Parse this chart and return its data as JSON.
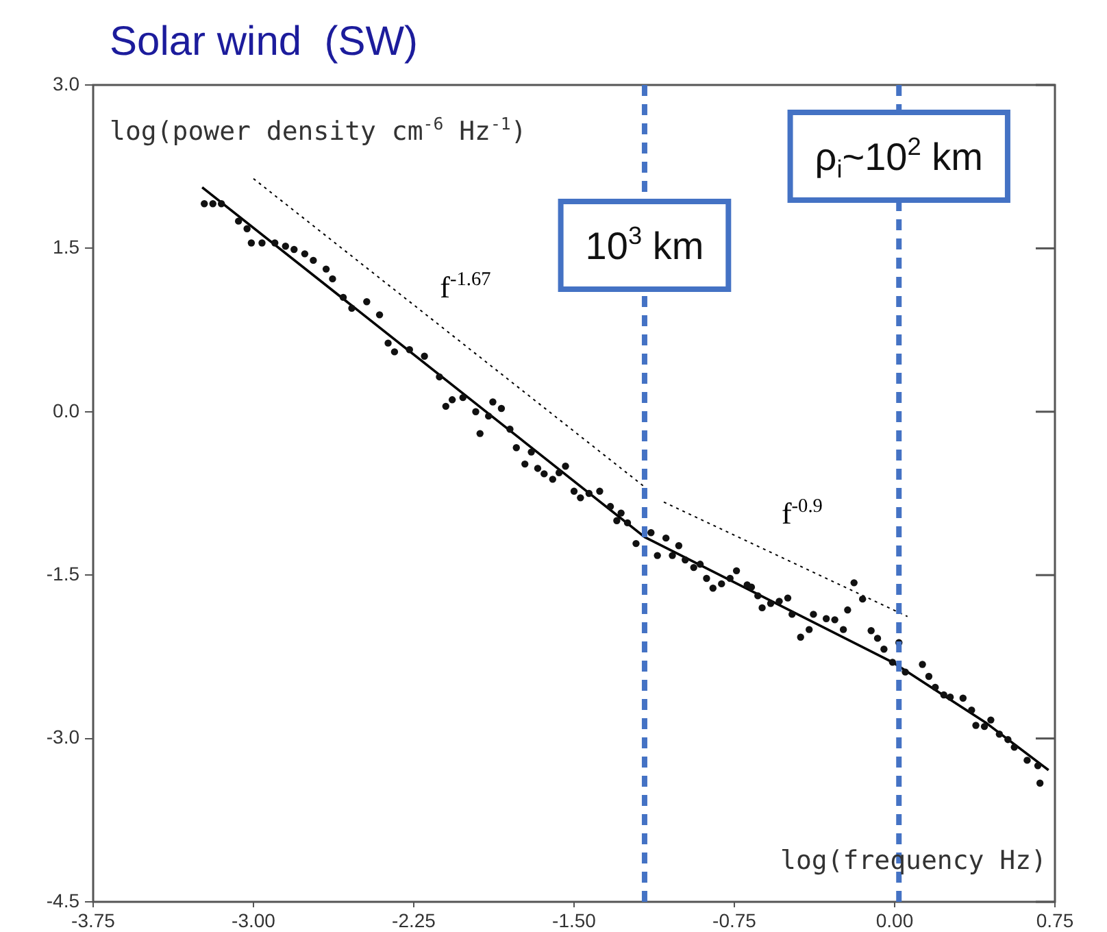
{
  "chart_data": {
    "type": "scatter",
    "title": "Solar wind  (SW)",
    "xlabel": "log(frequency Hz)",
    "ylabel": "log(power density cm$^{-6}$ Hz$^{-1}$)",
    "xlim": [
      -3.75,
      0.75
    ],
    "xticks": [
      -3.75,
      {
        "value": -3,
        "label": "-3.00"
      },
      -2.25,
      {
        "value": -1.5,
        "label": "-1.50"
      },
      -0.75,
      {
        "value": 0,
        "label": "0.00"
      },
      0.75
    ],
    "ylim": [
      -4.5,
      3
    ],
    "yticks": [
      {
        "value": -4.5,
        "label": "-4.5"
      },
      {
        "value": -3,
        "label": "-3.0"
      },
      {
        "value": -1.5,
        "label": "-1.5"
      },
      {
        "value": 0,
        "label": "0.0"
      },
      {
        "value": 1.5,
        "label": "1.5"
      },
      {
        "value": 3,
        "label": "3.0"
      }
    ],
    "grid": false,
    "legend": false,
    "series": [
      {
        "type": "scatter",
        "marker": "circle",
        "color": "#111111",
        "x": [
          -3.23,
          -3.19,
          -3.15,
          -3.07,
          -3.03,
          -3.01,
          -2.96,
          -2.9,
          -2.85,
          -2.81,
          -2.76,
          -2.72,
          -2.66,
          -2.63,
          -2.58,
          -2.54,
          -2.47,
          -2.41,
          -2.37,
          -2.34,
          -2.27,
          -2.2,
          -2.13,
          -2.1,
          -2.07,
          -2.02,
          -1.96,
          -1.94,
          -1.88,
          -1.9,
          -1.84,
          -1.8,
          -1.77,
          -1.73,
          -1.7,
          -1.67,
          -1.64,
          -1.6,
          -1.57,
          -1.54,
          -1.5,
          -1.47,
          -1.43,
          -1.38,
          -1.33,
          -1.3,
          -1.28,
          -1.25,
          -1.21,
          -1.14,
          -1.11,
          -1.07,
          -1.04,
          -1.01,
          -0.98,
          -0.94,
          -0.91,
          -0.88,
          -0.85,
          -0.81,
          -0.77,
          -0.74,
          -0.69,
          -0.67,
          -0.64,
          -0.62,
          -0.58,
          -0.54,
          -0.5,
          -0.48,
          -0.44,
          -0.4,
          -0.38,
          -0.32,
          -0.28,
          -0.24,
          -0.22,
          -0.19,
          -0.15,
          -0.11,
          -0.08,
          -0.05,
          -0.01,
          0.02,
          0.05,
          0.13,
          0.16,
          0.19,
          0.23,
          0.26,
          0.32,
          0.36,
          0.38,
          0.42,
          0.45,
          0.49,
          0.53,
          0.56,
          0.62,
          0.67,
          0.68
        ],
        "values": [
          1.91,
          1.91,
          1.91,
          1.75,
          1.68,
          1.55,
          1.55,
          1.55,
          1.52,
          1.49,
          1.45,
          1.39,
          1.31,
          1.22,
          1.05,
          0.95,
          1.01,
          0.89,
          0.63,
          0.55,
          0.57,
          0.51,
          0.32,
          0.05,
          0.11,
          0.13,
          0.0,
          -0.2,
          0.09,
          -0.04,
          0.03,
          -0.16,
          -0.33,
          -0.48,
          -0.37,
          -0.52,
          -0.57,
          -0.62,
          -0.56,
          -0.5,
          -0.73,
          -0.79,
          -0.75,
          -0.73,
          -0.87,
          -1.0,
          -0.93,
          -1.02,
          -1.21,
          -1.11,
          -1.32,
          -1.16,
          -1.32,
          -1.23,
          -1.36,
          -1.43,
          -1.4,
          -1.53,
          -1.62,
          -1.58,
          -1.53,
          -1.46,
          -1.59,
          -1.61,
          -1.69,
          -1.8,
          -1.76,
          -1.74,
          -1.71,
          -1.86,
          -2.07,
          -2.0,
          -1.86,
          -1.9,
          -1.91,
          -2.0,
          -1.82,
          -1.57,
          -1.72,
          -2.01,
          -2.08,
          -2.18,
          -2.3,
          -2.12,
          -2.39,
          -2.32,
          -2.43,
          -2.53,
          -2.6,
          -2.62,
          -2.63,
          -2.74,
          -2.88,
          -2.89,
          -2.83,
          -2.96,
          -3.01,
          -3.08,
          -3.2,
          -3.25,
          -3.41
        ]
      },
      {
        "type": "line",
        "marker": "none",
        "line_style": "solid",
        "color": "#000000",
        "x": [
          -3.24,
          -1.17,
          -0.01,
          0.43,
          0.72
        ],
        "values": [
          2.06,
          -1.15,
          -2.3,
          -2.86,
          -3.29
        ]
      },
      {
        "type": "line",
        "name": "f$^{-1.67}$",
        "marker": "none",
        "line_style": "dotted",
        "color": "#000000",
        "x": [
          -3.0,
          -1.17
        ],
        "values": [
          2.14,
          -0.69
        ]
      },
      {
        "type": "line",
        "name": "f$^{-0.9}$",
        "marker": "none",
        "line_style": "dotted",
        "color": "#000000",
        "x": [
          -1.08,
          0.06
        ],
        "values": [
          -0.83,
          -1.88
        ]
      }
    ],
    "ref_lines": [
      {
        "axis": "x",
        "value": -1.17,
        "label": "10$^{3}$ km",
        "color": "#4472c4",
        "line_style": "dashed"
      },
      {
        "axis": "x",
        "value": 0.02,
        "label": "ρ$_{i}$~10$^{2}$ km",
        "color": "#4472c4",
        "line_style": "dashed"
      }
    ]
  }
}
